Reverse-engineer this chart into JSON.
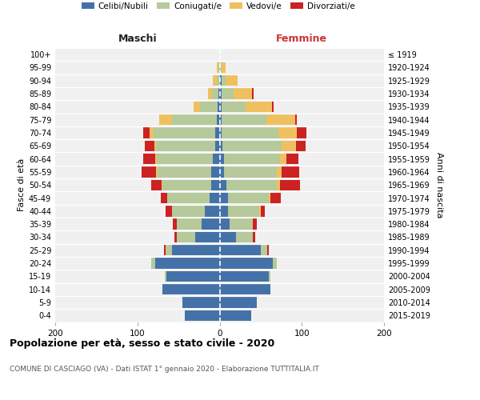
{
  "age_groups": [
    "0-4",
    "5-9",
    "10-14",
    "15-19",
    "20-24",
    "25-29",
    "30-34",
    "35-39",
    "40-44",
    "45-49",
    "50-54",
    "55-59",
    "60-64",
    "65-69",
    "70-74",
    "75-79",
    "80-84",
    "85-89",
    "90-94",
    "95-99",
    "100+"
  ],
  "birth_years": [
    "2015-2019",
    "2010-2014",
    "2005-2009",
    "2000-2004",
    "1995-1999",
    "1990-1994",
    "1985-1989",
    "1980-1984",
    "1975-1979",
    "1970-1974",
    "1965-1969",
    "1960-1964",
    "1955-1959",
    "1950-1954",
    "1945-1949",
    "1940-1944",
    "1935-1939",
    "1930-1934",
    "1925-1929",
    "1920-1924",
    "≤ 1919"
  ],
  "m_celibe": [
    42,
    45,
    70,
    65,
    78,
    58,
    30,
    22,
    18,
    12,
    10,
    10,
    8,
    5,
    5,
    3,
    2,
    1,
    0,
    0,
    0
  ],
  "m_coniugato": [
    0,
    0,
    0,
    2,
    5,
    8,
    22,
    30,
    40,
    52,
    60,
    65,
    68,
    72,
    75,
    55,
    22,
    8,
    3,
    1,
    0
  ],
  "m_vedovo": [
    0,
    0,
    0,
    0,
    0,
    0,
    0,
    0,
    0,
    0,
    1,
    2,
    2,
    2,
    5,
    15,
    8,
    5,
    5,
    2,
    0
  ],
  "m_divorziato": [
    0,
    0,
    0,
    0,
    0,
    2,
    3,
    5,
    8,
    8,
    12,
    18,
    15,
    12,
    8,
    0,
    0,
    0,
    0,
    0,
    0
  ],
  "f_nubile": [
    38,
    45,
    62,
    60,
    65,
    50,
    20,
    12,
    10,
    10,
    8,
    5,
    5,
    3,
    2,
    2,
    2,
    2,
    2,
    0,
    0
  ],
  "f_coniugata": [
    0,
    0,
    0,
    2,
    5,
    8,
    20,
    28,
    38,
    50,
    62,
    65,
    68,
    72,
    70,
    55,
    30,
    15,
    5,
    2,
    0
  ],
  "f_vedova": [
    0,
    0,
    0,
    0,
    0,
    0,
    0,
    0,
    2,
    2,
    3,
    5,
    8,
    18,
    22,
    35,
    32,
    22,
    15,
    5,
    0
  ],
  "f_divorziata": [
    0,
    0,
    0,
    0,
    0,
    2,
    3,
    5,
    5,
    12,
    25,
    22,
    15,
    12,
    12,
    2,
    2,
    2,
    0,
    0,
    0
  ],
  "color_celibe": "#4472a8",
  "color_coniugato": "#b5c99a",
  "color_vedovo": "#f0c060",
  "color_divorziato": "#cc2222",
  "legend_labels": [
    "Celibi/Nubili",
    "Coniugati/e",
    "Vedovi/e",
    "Divorziati/e"
  ],
  "title": "Popolazione per età, sesso e stato civile - 2020",
  "subtitle": "COMUNE DI CASCIAGO (VA) - Dati ISTAT 1° gennaio 2020 - Elaborazione TUTTITALIA.IT",
  "label_maschi": "Maschi",
  "label_femmine": "Femmine",
  "ylabel_left": "Fasce di età",
  "ylabel_right": "Anni di nascita",
  "xlim": 200,
  "bg_color": "#ffffff",
  "plot_bg": "#f0f0f0"
}
